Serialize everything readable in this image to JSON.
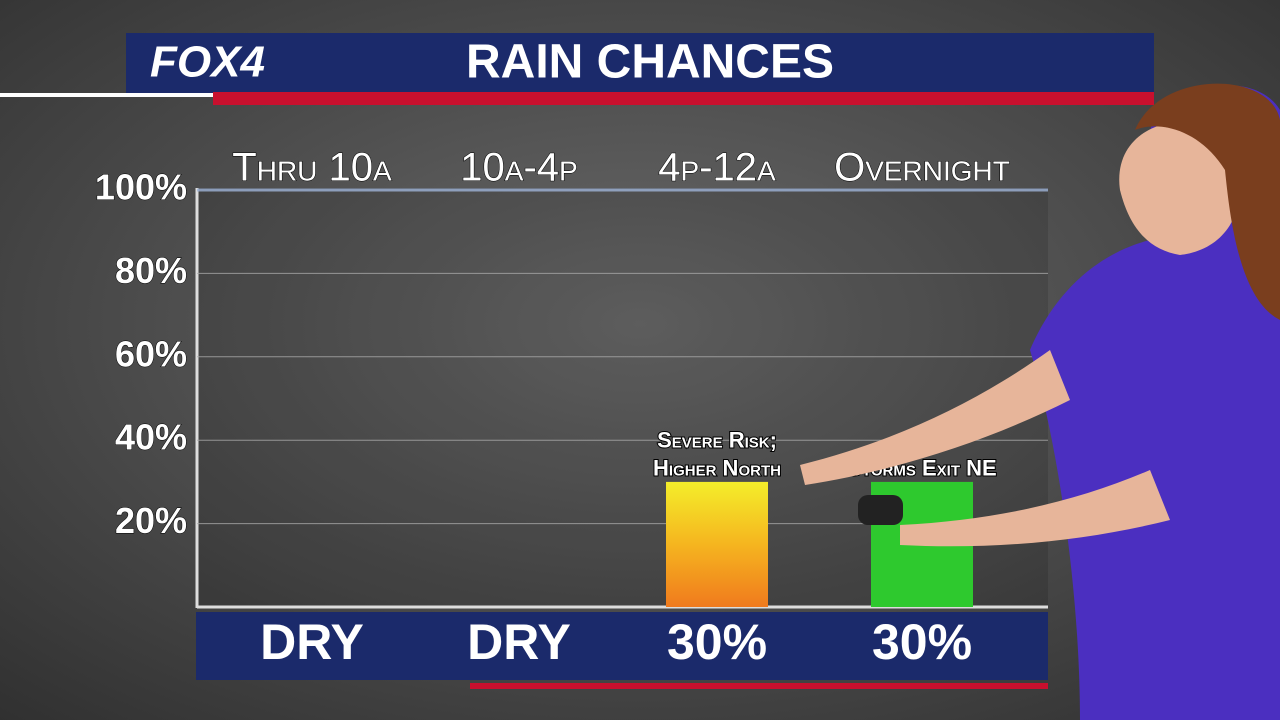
{
  "brand": "FOX4",
  "chart_data": {
    "type": "bar",
    "title": "RAIN CHANCES",
    "categories": [
      "Thru 10a",
      "10a-4p",
      "4p-12a",
      "Overnight"
    ],
    "values": [
      0,
      0,
      30,
      30
    ],
    "value_labels": [
      "DRY",
      "DRY",
      "30%",
      "30%"
    ],
    "colors": [
      "#f07a1e",
      "#f07a1e",
      "#f07a1e",
      "#2ec92e"
    ],
    "ylim": [
      0,
      100
    ],
    "yticks": [
      {
        "value": 20,
        "label": "20%"
      },
      {
        "value": 40,
        "label": "40%"
      },
      {
        "value": 60,
        "label": "60%"
      },
      {
        "value": 80,
        "label": "80%"
      },
      {
        "value": 100,
        "label": "100%"
      }
    ],
    "grid": true,
    "annotations": [
      [
        "Severe Risk;",
        "Higher North"
      ],
      [
        "Storms Exit NE"
      ]
    ]
  }
}
